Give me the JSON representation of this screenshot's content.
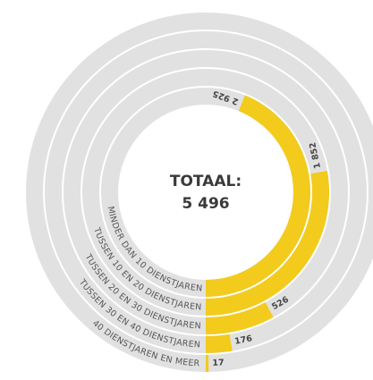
{
  "chart_data": {
    "type": "radial_bar",
    "title": "TOTAAL:",
    "total": {
      "value": 5496,
      "label": "5 496"
    },
    "categories": [
      "MINDER DAN 10 DIENSTJAREN",
      "TUSSEN 10 EN 20 DIENSTJAREN",
      "TUSSEN 20 EN 30 DIENSTJAREN",
      "TUSSEN 30 EN 40 DIENSTJAREN",
      "40 DIENSTJAREN EN MEER"
    ],
    "values": [
      2925,
      1852,
      526,
      176,
      17
    ],
    "value_labels": [
      "2 925",
      "1 852",
      "526",
      "176",
      "17"
    ],
    "color": "#f2cb1d",
    "track_color": "#e1e1e1"
  }
}
